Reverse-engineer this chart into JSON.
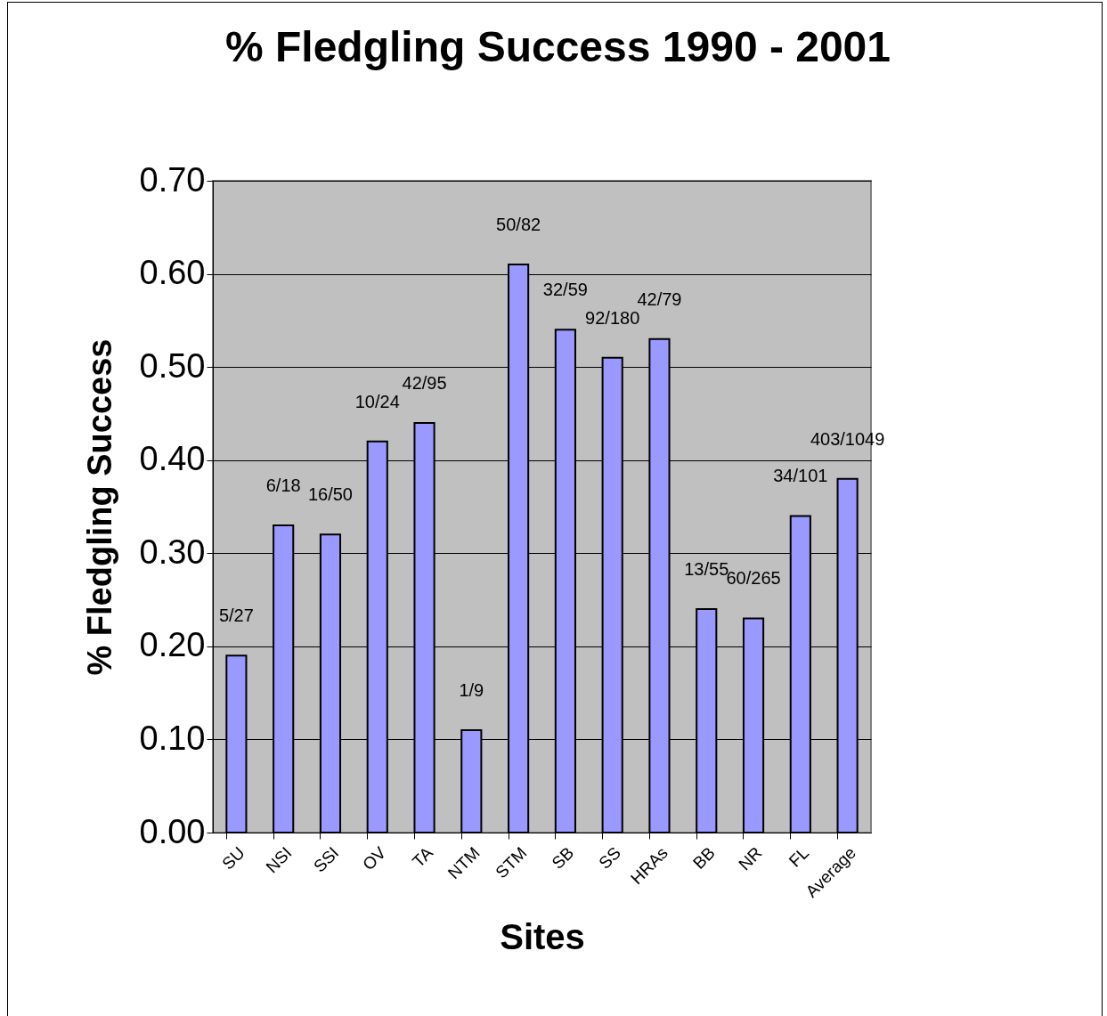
{
  "chart_data": {
    "type": "bar",
    "title": "% Fledgling Success 1990 - 2001",
    "xlabel": "Sites",
    "ylabel": "% Fledgling Success",
    "categories": [
      "SU",
      "NSI",
      "SSI",
      "OV",
      "TA",
      "NTM",
      "STM",
      "SB",
      "SS",
      "HRAs",
      "BB",
      "NR",
      "FL",
      "Average"
    ],
    "values": [
      0.19,
      0.33,
      0.32,
      0.42,
      0.44,
      0.11,
      0.61,
      0.54,
      0.51,
      0.53,
      0.24,
      0.23,
      0.34,
      0.38
    ],
    "value_labels": [
      "5/27",
      "6/18",
      "16/50",
      "10/24",
      "42/95",
      "1/9",
      "50/82",
      "32/59",
      "92/180",
      "42/79",
      "13/55",
      "60/265",
      "34/101",
      "403/1049"
    ],
    "color": "#9999ff",
    "ylim": [
      0,
      0.7
    ],
    "yticks": [
      {
        "value": 0,
        "label": "0.00"
      },
      {
        "value": 0.1,
        "label": "0.10"
      },
      {
        "value": 0.2,
        "label": "0.20"
      },
      {
        "value": 0.3,
        "label": "0.30"
      },
      {
        "value": 0.4,
        "label": "0.40"
      },
      {
        "value": 0.5,
        "label": "0.50"
      },
      {
        "value": 0.6,
        "label": "0.60"
      },
      {
        "value": 0.7,
        "label": "0.70"
      }
    ],
    "grid": "y"
  }
}
